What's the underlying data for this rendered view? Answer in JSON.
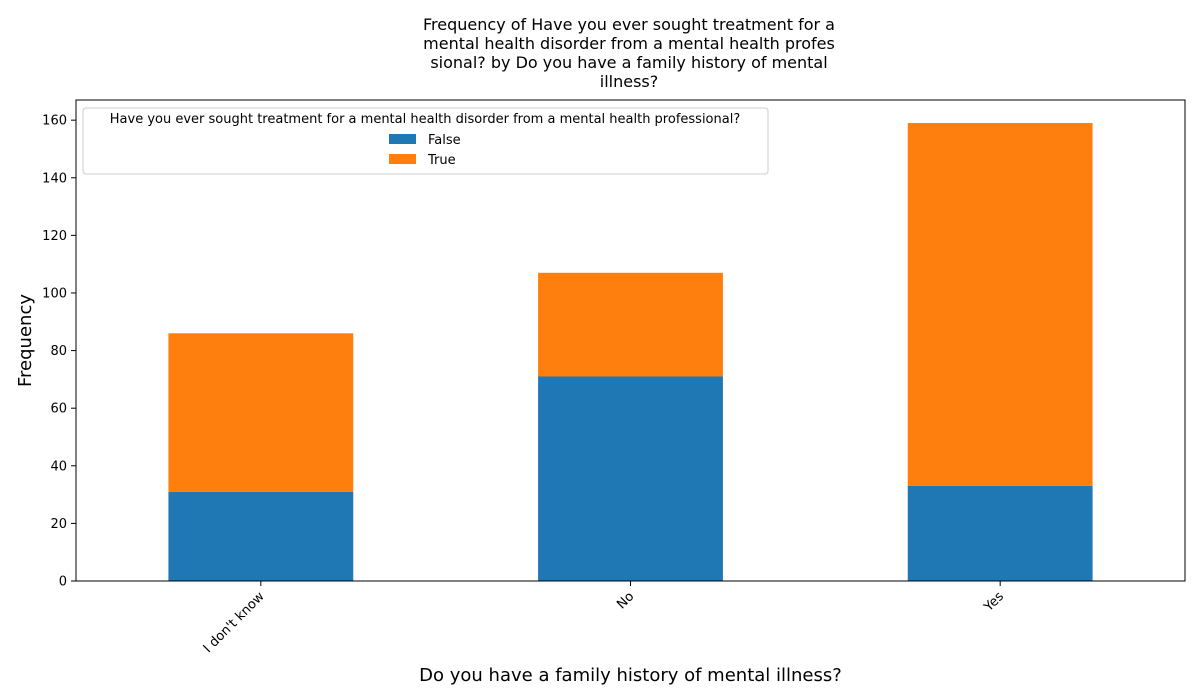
{
  "chart_data": {
    "type": "bar",
    "stacked": true,
    "title_lines": [
      "Frequency of Have you ever sought treatment for a",
      "mental health disorder from a mental health profes",
      "sional? by Do you have a family history of mental",
      "illness?"
    ],
    "xlabel": "Do you have a family history of mental illness?",
    "ylabel": "Frequency",
    "categories": [
      "I don't know",
      "No",
      "Yes"
    ],
    "series": [
      {
        "name": "False",
        "values": [
          31,
          71,
          33
        ]
      },
      {
        "name": "True",
        "values": [
          55,
          36,
          126
        ]
      }
    ],
    "ylim": [
      0,
      167
    ],
    "yticks": [
      0,
      20,
      40,
      60,
      80,
      100,
      120,
      140,
      160
    ],
    "legend": {
      "title": "Have you ever sought treatment for a mental health disorder from a mental health professional?",
      "placement": "top-left"
    },
    "colors": {
      "False": "#1f77b4",
      "True": "#ff7f0e"
    },
    "grid": false
  }
}
